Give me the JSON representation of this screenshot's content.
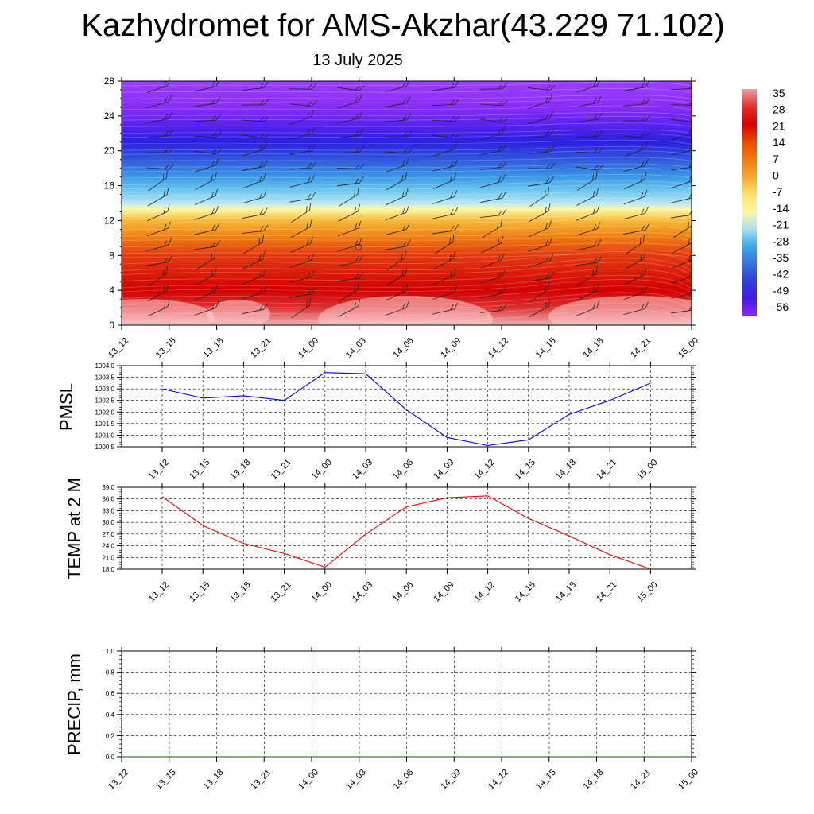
{
  "title": "Kazhydromet for AMS-Akzhar(43.229 71.102)",
  "subtitle": "13 July 2025",
  "chart_data": [
    {
      "type": "heatmap",
      "name": "vertical-profile",
      "x_ticks": [
        "13_12",
        "13_15",
        "13_18",
        "13_21",
        "14_00",
        "14_03",
        "14_06",
        "14_09",
        "14_12",
        "14_15",
        "14_18",
        "14_21",
        "15_00"
      ],
      "y_ticks": [
        "0",
        "4",
        "8",
        "12",
        "16",
        "20",
        "24",
        "28"
      ],
      "ylim": [
        0,
        28
      ],
      "colorbar": {
        "labels": [
          "35",
          "28",
          "21",
          "14",
          "7",
          "0",
          "-7",
          "-14",
          "-21",
          "-28",
          "-35",
          "-42",
          "-49",
          "-56"
        ],
        "colors": [
          "#f0a0a0",
          "#e23030",
          "#d60000",
          "#e84a00",
          "#f07a10",
          "#f4a830",
          "#fde070",
          "#fff6a0",
          "#a8e0f0",
          "#3aa8e8",
          "#3a70e0",
          "#3040d8",
          "#4418e8",
          "#8a2cf8"
        ]
      },
      "bands": [
        {
          "level": 0,
          "color": "#f3b3b3"
        },
        {
          "level": 2,
          "color": "#dc3030"
        },
        {
          "level": 4,
          "color": "#d40000"
        },
        {
          "level": 8,
          "color": "#e23a10"
        },
        {
          "level": 10,
          "color": "#ef7a10"
        },
        {
          "level": 12,
          "color": "#f6bb3a"
        },
        {
          "level": 13.3,
          "color": "#fff7a6"
        },
        {
          "level": 14,
          "color": "#b6e6f5"
        },
        {
          "level": 15.5,
          "color": "#6cc6ee"
        },
        {
          "level": 17,
          "color": "#3a98e6"
        },
        {
          "level": 19,
          "color": "#3058dc"
        },
        {
          "level": 21,
          "color": "#2c1ee0"
        },
        {
          "level": 23,
          "color": "#5a22f0"
        },
        {
          "level": 25,
          "color": "#8a2cf8"
        },
        {
          "level": 28,
          "color": "#9a40ff"
        }
      ]
    },
    {
      "type": "line",
      "name": "pmsl",
      "ylabel": "PMSL",
      "x": [
        "13_12",
        "13_15",
        "13_18",
        "13_21",
        "14_00",
        "14_03",
        "14_06",
        "14_09",
        "14_12",
        "14_15",
        "14_18",
        "14_21",
        "15_00"
      ],
      "y_ticks": [
        "1004.0",
        "1003.5",
        "1003.0",
        "1002.5",
        "1002.0",
        "1001.5",
        "1001.0",
        "1000.5"
      ],
      "ylim": [
        1000.5,
        1004.0
      ],
      "values": [
        1003.0,
        1002.6,
        1002.7,
        1002.5,
        1003.7,
        1003.65,
        1002.1,
        1000.9,
        1000.55,
        1000.8,
        1001.9,
        1002.5,
        1003.25
      ],
      "color": "#0000ff"
    },
    {
      "type": "line",
      "name": "temp2m",
      "ylabel": "TEMP at 2 M",
      "x": [
        "13_12",
        "13_15",
        "13_18",
        "13_21",
        "14_00",
        "14_03",
        "14_06",
        "14_09",
        "14_12",
        "14_15",
        "14_18",
        "14_21",
        "15_00"
      ],
      "y_ticks": [
        "39.0",
        "36.0",
        "33.0",
        "30.0",
        "27.0",
        "24.0",
        "21.0",
        "18.0"
      ],
      "ylim": [
        18.0,
        39.0
      ],
      "values": [
        36.6,
        29.2,
        24.6,
        22.0,
        18.5,
        27.0,
        34.0,
        36.3,
        36.8,
        31.0,
        26.5,
        21.7,
        18.0
      ],
      "color": "#ff0000"
    },
    {
      "type": "line",
      "name": "precip",
      "ylabel": "PRECIP, mm",
      "x": [
        "13_12",
        "13_15",
        "13_18",
        "13_21",
        "14_00",
        "14_03",
        "14_06",
        "14_09",
        "14_12",
        "14_15",
        "14_18",
        "14_21",
        "15_00"
      ],
      "y_ticks": [
        "1.0",
        "0.8",
        "0.6",
        "0.4",
        "0.2",
        "0.0"
      ],
      "ylim": [
        0.0,
        1.0
      ],
      "values": [
        0,
        0,
        0,
        0,
        0,
        0,
        0,
        0,
        0,
        0,
        0,
        0,
        0
      ],
      "color": "#006400"
    }
  ]
}
